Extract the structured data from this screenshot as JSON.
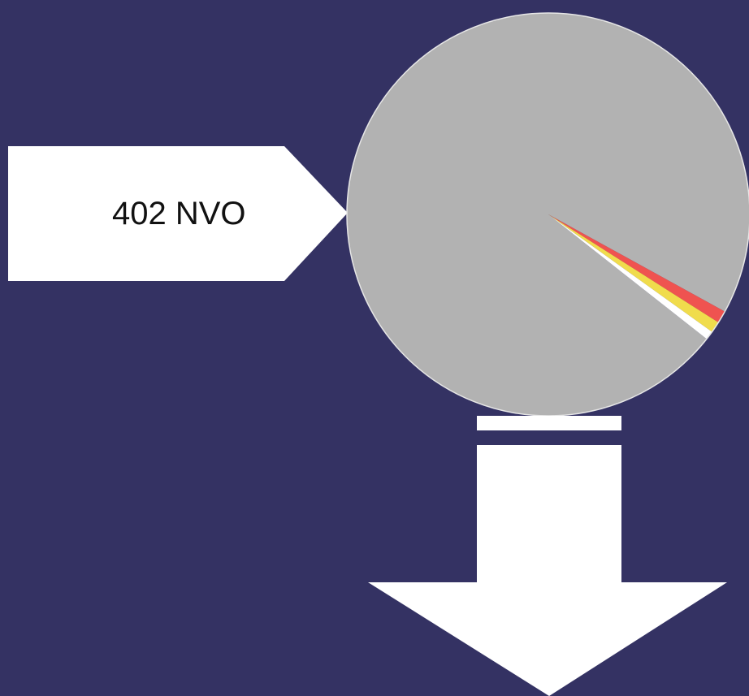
{
  "label": {
    "text": "402 NVO"
  },
  "colors": {
    "background": "#343263",
    "pie_main": "#b2b2b2",
    "slice_red": "#ef5350",
    "slice_yellow": "#f0dc4c",
    "slice_white": "#ffffff",
    "shapes": "#ffffff"
  },
  "chart_data": {
    "type": "pie",
    "slices": [
      {
        "value": 97.4,
        "color": "#b2b2b2"
      },
      {
        "value": 1.0,
        "color": "#ef5350"
      },
      {
        "value": 0.9,
        "color": "#f0dc4c"
      },
      {
        "value": 0.7,
        "color": "#ffffff"
      }
    ],
    "start_angle_deg": 38.2
  }
}
